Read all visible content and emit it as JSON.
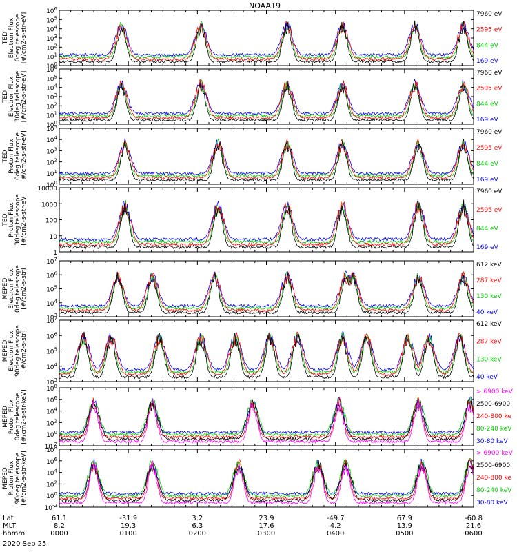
{
  "title": "NOAA19",
  "date_label": "2020 Sep 25",
  "footer": {
    "row_labels": [
      "Lat",
      "MLT",
      "hhmm"
    ],
    "columns": [
      {
        "lat": "61.1",
        "mlt": "8.2",
        "hhmm": "0000"
      },
      {
        "lat": "-31.9",
        "mlt": "19.3",
        "hhmm": "0100"
      },
      {
        "lat": "3.2",
        "mlt": "6.3",
        "hhmm": "0200"
      },
      {
        "lat": "23.9",
        "mlt": "17.6",
        "hhmm": "0300"
      },
      {
        "lat": "-49.7",
        "mlt": "4.2",
        "hhmm": "0400"
      },
      {
        "lat": "67.9",
        "mlt": "13.9",
        "hhmm": "0500"
      },
      {
        "lat": "-60.8",
        "mlt": "21.6",
        "hhmm": "0600"
      }
    ]
  },
  "chart_data": [
    {
      "type": "line",
      "ylabel": [
        "TED",
        "Electron Flux",
        "0deg telescope",
        "[#/cm2-s-str-eV]"
      ],
      "yscale": "log",
      "ylim": [
        1,
        1000000
      ],
      "yticks": [
        {
          "v": 1,
          "label": "10",
          "exp": "0"
        },
        {
          "v": 10,
          "label": "10",
          "exp": "1"
        },
        {
          "v": 100,
          "label": "10",
          "exp": "2"
        },
        {
          "v": 1000,
          "label": "10",
          "exp": "3"
        },
        {
          "v": 10000,
          "label": "10",
          "exp": "4"
        },
        {
          "v": 100000,
          "label": "10",
          "exp": "5"
        },
        {
          "v": 1000000,
          "label": "10",
          "exp": "6"
        }
      ],
      "x_range_hhmm": [
        "0000",
        "0600"
      ],
      "series": [
        {
          "name": "7960 eV",
          "color": "#000000"
        },
        {
          "name": "2595 eV",
          "color": "#ff0000"
        },
        {
          "name": "844 eV",
          "color": "#00cc00"
        },
        {
          "name": "169 eV",
          "color": "#0000ff"
        }
      ],
      "peaks_hours": [
        0.9,
        2.05,
        3.3,
        4.1,
        5.15,
        5.85
      ]
    },
    {
      "type": "line",
      "ylabel": [
        "TED",
        "Electron Flux",
        "30deg telescope",
        "[#/cm2-s-str-eV]"
      ],
      "yscale": "log",
      "ylim": [
        1,
        1000000
      ],
      "yticks": [
        {
          "v": 1,
          "label": "10",
          "exp": "0"
        },
        {
          "v": 10,
          "label": "10",
          "exp": "1"
        },
        {
          "v": 100,
          "label": "10",
          "exp": "2"
        },
        {
          "v": 1000,
          "label": "10",
          "exp": "3"
        },
        {
          "v": 10000,
          "label": "10",
          "exp": "4"
        },
        {
          "v": 100000,
          "label": "10",
          "exp": "5"
        },
        {
          "v": 1000000,
          "label": "10",
          "exp": "6"
        }
      ],
      "x_range_hhmm": [
        "0000",
        "0600"
      ],
      "series": [
        {
          "name": "7960 eV",
          "color": "#000000"
        },
        {
          "name": "2595 eV",
          "color": "#ff0000"
        },
        {
          "name": "844 eV",
          "color": "#00cc00"
        },
        {
          "name": "169 eV",
          "color": "#0000ff"
        }
      ],
      "peaks_hours": [
        0.9,
        2.05,
        3.3,
        4.1,
        5.15,
        5.85
      ]
    },
    {
      "type": "line",
      "ylabel": [
        "TED",
        "Proton Flux",
        "0deg telescope",
        "[#/cm2-s-str-eV]"
      ],
      "yscale": "log",
      "ylim": [
        1,
        100000
      ],
      "yticks": [
        {
          "v": 1,
          "label": "10",
          "exp": "0"
        },
        {
          "v": 10,
          "label": "10",
          "exp": "1"
        },
        {
          "v": 100,
          "label": "10",
          "exp": "2"
        },
        {
          "v": 1000,
          "label": "10",
          "exp": "3"
        },
        {
          "v": 10000,
          "label": "10",
          "exp": "4"
        },
        {
          "v": 100000,
          "label": "10",
          "exp": "5"
        }
      ],
      "x_range_hhmm": [
        "0000",
        "0600"
      ],
      "series": [
        {
          "name": "7960 eV",
          "color": "#000000"
        },
        {
          "name": "2595 eV",
          "color": "#ff0000"
        },
        {
          "name": "844 eV",
          "color": "#00cc00"
        },
        {
          "name": "169 eV",
          "color": "#0000ff"
        }
      ],
      "peaks_hours": [
        0.95,
        2.3,
        3.3,
        4.1,
        5.2,
        5.85
      ]
    },
    {
      "type": "line",
      "ylabel": [
        "TED",
        "Proton Flux",
        "30deg telescope",
        "[#/cm2-s-str-eV]"
      ],
      "yscale": "log",
      "ylim": [
        1,
        10000
      ],
      "yticks": [
        {
          "v": 1,
          "label": "1",
          "exp": ""
        },
        {
          "v": 10,
          "label": "10",
          "exp": ""
        },
        {
          "v": 100,
          "label": "100",
          "exp": ""
        },
        {
          "v": 1000,
          "label": "1000",
          "exp": ""
        },
        {
          "v": 10000,
          "label": "10000",
          "exp": ""
        }
      ],
      "x_range_hhmm": [
        "0000",
        "0600"
      ],
      "series": [
        {
          "name": "7960 eV",
          "color": "#000000"
        },
        {
          "name": "2595 eV",
          "color": "#ff0000"
        },
        {
          "name": "844 eV",
          "color": "#00cc00"
        },
        {
          "name": "169 eV",
          "color": "#0000ff"
        }
      ],
      "peaks_hours": [
        0.95,
        2.3,
        3.3,
        4.1,
        5.2,
        5.85
      ]
    },
    {
      "type": "line",
      "ylabel": [
        "MEPED",
        "Electron Flux",
        "0deg telescope",
        "[#/cm2-s-str]"
      ],
      "yscale": "log",
      "ylim": [
        1000,
        10000000
      ],
      "yticks": [
        {
          "v": 1000,
          "label": "10",
          "exp": "3"
        },
        {
          "v": 10000,
          "label": "10",
          "exp": "4"
        },
        {
          "v": 100000,
          "label": "10",
          "exp": "5"
        },
        {
          "v": 1000000,
          "label": "10",
          "exp": "6"
        },
        {
          "v": 10000000,
          "label": "10",
          "exp": "7"
        }
      ],
      "x_range_hhmm": [
        "0000",
        "0600"
      ],
      "series": [
        {
          "name": "612 keV",
          "color": "#000000"
        },
        {
          "name": "287 keV",
          "color": "#ff0000"
        },
        {
          "name": "130 keV",
          "color": "#00cc00"
        },
        {
          "name": "40 keV",
          "color": "#0000ff"
        }
      ],
      "peaks_hours": [
        0.85,
        1.35,
        2.25,
        3.3,
        4.15,
        4.25,
        5.2,
        5.85
      ]
    },
    {
      "type": "line",
      "ylabel": [
        "MEPED",
        "Electron Flux",
        "90deg telescope",
        "[#/cm2-s-str]"
      ],
      "yscale": "log",
      "ylim": [
        1000,
        10000000
      ],
      "yticks": [
        {
          "v": 1000,
          "label": "10",
          "exp": "3"
        },
        {
          "v": 10000,
          "label": "10",
          "exp": "4"
        },
        {
          "v": 100000,
          "label": "10",
          "exp": "5"
        },
        {
          "v": 1000000,
          "label": "10",
          "exp": "6"
        },
        {
          "v": 10000000,
          "label": "10",
          "exp": "7"
        }
      ],
      "x_range_hhmm": [
        "0000",
        "0600"
      ],
      "series": [
        {
          "name": "612 keV",
          "color": "#000000"
        },
        {
          "name": "287 keV",
          "color": "#ff0000"
        },
        {
          "name": "130 keV",
          "color": "#00cc00"
        },
        {
          "name": "40 keV",
          "color": "#0000ff"
        }
      ],
      "peaks_hours": [
        0.35,
        0.75,
        1.45,
        2.05,
        2.55,
        3.05,
        3.45,
        4.1,
        4.45,
        5.05,
        5.35,
        5.8
      ]
    },
    {
      "type": "line",
      "ylabel": [
        "MEPED",
        "Proton Flux",
        "0deg telescope",
        "[#/cm2-s-str-keV]"
      ],
      "yscale": "log",
      "ylim": [
        0.01,
        100000000
      ],
      "yticks": [
        {
          "v": 0.01,
          "label": "10",
          "exp": "-2"
        },
        {
          "v": 1,
          "label": "10",
          "exp": "0"
        },
        {
          "v": 100,
          "label": "10",
          "exp": "2"
        },
        {
          "v": 10000,
          "label": "10",
          "exp": "4"
        },
        {
          "v": 1000000,
          "label": "10",
          "exp": "6"
        },
        {
          "v": 100000000,
          "label": "10",
          "exp": "8"
        }
      ],
      "x_range_hhmm": [
        "0000",
        "0600"
      ],
      "series": [
        {
          "name": "> 6900 keV",
          "color": "#ff00ff"
        },
        {
          "name": "2500-6900",
          "color": "#000000"
        },
        {
          "name": "240-800 ke",
          "color": "#ff0000"
        },
        {
          "name": "80-240 keV",
          "color": "#00cc00"
        },
        {
          "name": "30-80 keV",
          "color": "#0000ff"
        }
      ],
      "peaks_hours": [
        0.5,
        1.35,
        2.8,
        4.05,
        5.2,
        5.95
      ]
    },
    {
      "type": "line",
      "ylabel": [
        "MEPED",
        "Proton Flux",
        "90deg telescope",
        "[#/cm2-s-str-keV]"
      ],
      "yscale": "log",
      "ylim": [
        0.01,
        100000000
      ],
      "yticks": [
        {
          "v": 0.01,
          "label": "10",
          "exp": "-2"
        },
        {
          "v": 1,
          "label": "10",
          "exp": "0"
        },
        {
          "v": 100,
          "label": "10",
          "exp": "2"
        },
        {
          "v": 10000,
          "label": "10",
          "exp": "4"
        },
        {
          "v": 1000000,
          "label": "10",
          "exp": "6"
        },
        {
          "v": 100000000,
          "label": "10",
          "exp": "8"
        }
      ],
      "x_range_hhmm": [
        "0000",
        "0600"
      ],
      "series": [
        {
          "name": "> 6900 keV",
          "color": "#ff00ff"
        },
        {
          "name": "2500-6900",
          "color": "#000000"
        },
        {
          "name": "240-800 ke",
          "color": "#ff0000"
        },
        {
          "name": "80-240 keV",
          "color": "#00cc00"
        },
        {
          "name": "30-80 keV",
          "color": "#0000ff"
        }
      ],
      "peaks_hours": [
        0.5,
        1.35,
        2.6,
        3.75,
        4.15,
        5.25,
        5.95
      ]
    }
  ]
}
